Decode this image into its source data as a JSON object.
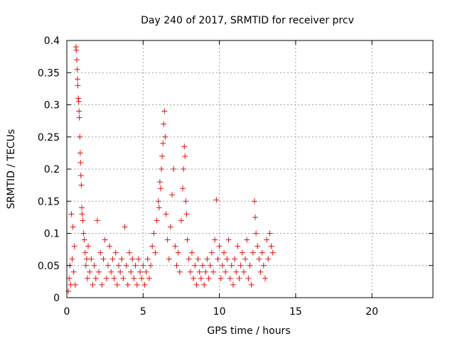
{
  "chart_data": {
    "type": "scatter",
    "title": "Day 240 of 2017, SRMTID for receiver prcv",
    "xlabel": "GPS time / hours",
    "ylabel": "SRMTID / TECUs",
    "xlim": [
      0,
      24
    ],
    "ylim": [
      0,
      0.4
    ],
    "x_ticks": [
      0,
      5,
      10,
      15,
      20
    ],
    "x_tick_labels": [
      "0",
      "5",
      "10",
      "15",
      "20"
    ],
    "y_ticks": [
      0,
      0.05,
      0.1,
      0.15,
      0.2,
      0.25,
      0.3,
      0.35,
      0.4
    ],
    "y_tick_labels": [
      "0",
      "0.05",
      "0.1",
      "0.15",
      "0.2",
      "0.25",
      "0.3",
      "0.35",
      "0.4"
    ],
    "grid": true,
    "marker": "plus",
    "series": [
      {
        "name": "SRMTID",
        "color": "#e01010",
        "points": [
          [
            0.1,
            0.01
          ],
          [
            0.15,
            0.03
          ],
          [
            0.2,
            0.05
          ],
          [
            0.25,
            0.02
          ],
          [
            0.3,
            0.13
          ],
          [
            0.35,
            0.06
          ],
          [
            0.4,
            0.11
          ],
          [
            0.45,
            0.04
          ],
          [
            0.5,
            0.08
          ],
          [
            0.55,
            0.02
          ],
          [
            0.6,
            0.39
          ],
          [
            0.62,
            0.385
          ],
          [
            0.65,
            0.37
          ],
          [
            0.68,
            0.355
          ],
          [
            0.7,
            0.34
          ],
          [
            0.72,
            0.33
          ],
          [
            0.75,
            0.31
          ],
          [
            0.78,
            0.305
          ],
          [
            0.8,
            0.29
          ],
          [
            0.82,
            0.28
          ],
          [
            0.85,
            0.25
          ],
          [
            0.88,
            0.225
          ],
          [
            0.9,
            0.21
          ],
          [
            0.92,
            0.19
          ],
          [
            0.95,
            0.175
          ],
          [
            0.98,
            0.14
          ],
          [
            1.0,
            0.13
          ],
          [
            1.05,
            0.12
          ],
          [
            1.1,
            0.1
          ],
          [
            1.15,
            0.09
          ],
          [
            1.2,
            0.07
          ],
          [
            1.25,
            0.05
          ],
          [
            1.3,
            0.06
          ],
          [
            1.35,
            0.03
          ],
          [
            1.4,
            0.08
          ],
          [
            1.5,
            0.04
          ],
          [
            1.6,
            0.06
          ],
          [
            1.7,
            0.02
          ],
          [
            1.8,
            0.05
          ],
          [
            1.9,
            0.03
          ],
          [
            2.0,
            0.12
          ],
          [
            2.1,
            0.04
          ],
          [
            2.2,
            0.07
          ],
          [
            2.3,
            0.02
          ],
          [
            2.4,
            0.06
          ],
          [
            2.5,
            0.09
          ],
          [
            2.6,
            0.03
          ],
          [
            2.7,
            0.05
          ],
          [
            2.8,
            0.08
          ],
          [
            2.9,
            0.04
          ],
          [
            3.0,
            0.06
          ],
          [
            3.1,
            0.03
          ],
          [
            3.2,
            0.07
          ],
          [
            3.3,
            0.02
          ],
          [
            3.4,
            0.05
          ],
          [
            3.5,
            0.04
          ],
          [
            3.6,
            0.06
          ],
          [
            3.7,
            0.03
          ],
          [
            3.8,
            0.11
          ],
          [
            3.9,
            0.05
          ],
          [
            4.0,
            0.02
          ],
          [
            4.1,
            0.07
          ],
          [
            4.2,
            0.04
          ],
          [
            4.3,
            0.06
          ],
          [
            4.4,
            0.03
          ],
          [
            4.5,
            0.05
          ],
          [
            4.6,
            0.02
          ],
          [
            4.7,
            0.06
          ],
          [
            4.8,
            0.04
          ],
          [
            4.9,
            0.03
          ],
          [
            5.0,
            0.05
          ],
          [
            5.1,
            0.02
          ],
          [
            5.2,
            0.04
          ],
          [
            5.3,
            0.06
          ],
          [
            5.4,
            0.03
          ],
          [
            5.5,
            0.05
          ],
          [
            5.6,
            0.08
          ],
          [
            5.7,
            0.1
          ],
          [
            5.8,
            0.07
          ],
          [
            5.9,
            0.12
          ],
          [
            6.0,
            0.15
          ],
          [
            6.05,
            0.14
          ],
          [
            6.1,
            0.18
          ],
          [
            6.15,
            0.17
          ],
          [
            6.2,
            0.2
          ],
          [
            6.25,
            0.22
          ],
          [
            6.3,
            0.24
          ],
          [
            6.35,
            0.27
          ],
          [
            6.4,
            0.29
          ],
          [
            6.45,
            0.25
          ],
          [
            6.5,
            0.13
          ],
          [
            6.6,
            0.09
          ],
          [
            6.7,
            0.06
          ],
          [
            6.8,
            0.11
          ],
          [
            6.9,
            0.16
          ],
          [
            7.0,
            0.2
          ],
          [
            7.1,
            0.08
          ],
          [
            7.2,
            0.05
          ],
          [
            7.3,
            0.07
          ],
          [
            7.4,
            0.04
          ],
          [
            7.5,
            0.12
          ],
          [
            7.6,
            0.17
          ],
          [
            7.65,
            0.2
          ],
          [
            7.7,
            0.235
          ],
          [
            7.75,
            0.22
          ],
          [
            7.8,
            0.15
          ],
          [
            7.85,
            0.13
          ],
          [
            7.9,
            0.09
          ],
          [
            8.0,
            0.06
          ],
          [
            8.1,
            0.04
          ],
          [
            8.2,
            0.07
          ],
          [
            8.3,
            0.03
          ],
          [
            8.4,
            0.05
          ],
          [
            8.5,
            0.02
          ],
          [
            8.6,
            0.06
          ],
          [
            8.7,
            0.04
          ],
          [
            8.8,
            0.03
          ],
          [
            8.9,
            0.05
          ],
          [
            9.0,
            0.02
          ],
          [
            9.1,
            0.04
          ],
          [
            9.2,
            0.06
          ],
          [
            9.3,
            0.03
          ],
          [
            9.4,
            0.05
          ],
          [
            9.5,
            0.07
          ],
          [
            9.6,
            0.04
          ],
          [
            9.7,
            0.09
          ],
          [
            9.8,
            0.152
          ],
          [
            9.9,
            0.06
          ],
          [
            10.0,
            0.08
          ],
          [
            10.1,
            0.03
          ],
          [
            10.2,
            0.05
          ],
          [
            10.3,
            0.07
          ],
          [
            10.4,
            0.04
          ],
          [
            10.5,
            0.06
          ],
          [
            10.6,
            0.09
          ],
          [
            10.7,
            0.03
          ],
          [
            10.8,
            0.05
          ],
          [
            10.9,
            0.02
          ],
          [
            11.0,
            0.06
          ],
          [
            11.1,
            0.04
          ],
          [
            11.2,
            0.08
          ],
          [
            11.3,
            0.03
          ],
          [
            11.4,
            0.05
          ],
          [
            11.5,
            0.07
          ],
          [
            11.6,
            0.04
          ],
          [
            11.7,
            0.06
          ],
          [
            11.8,
            0.09
          ],
          [
            11.9,
            0.03
          ],
          [
            12.0,
            0.05
          ],
          [
            12.1,
            0.02
          ],
          [
            12.2,
            0.07
          ],
          [
            12.3,
            0.15
          ],
          [
            12.35,
            0.125
          ],
          [
            12.4,
            0.1
          ],
          [
            12.5,
            0.08
          ],
          [
            12.6,
            0.06
          ],
          [
            12.7,
            0.04
          ],
          [
            12.8,
            0.07
          ],
          [
            12.9,
            0.05
          ],
          [
            13.0,
            0.03
          ],
          [
            13.1,
            0.09
          ],
          [
            13.2,
            0.06
          ],
          [
            13.3,
            0.1
          ],
          [
            13.4,
            0.08
          ],
          [
            13.5,
            0.07
          ]
        ]
      }
    ]
  }
}
